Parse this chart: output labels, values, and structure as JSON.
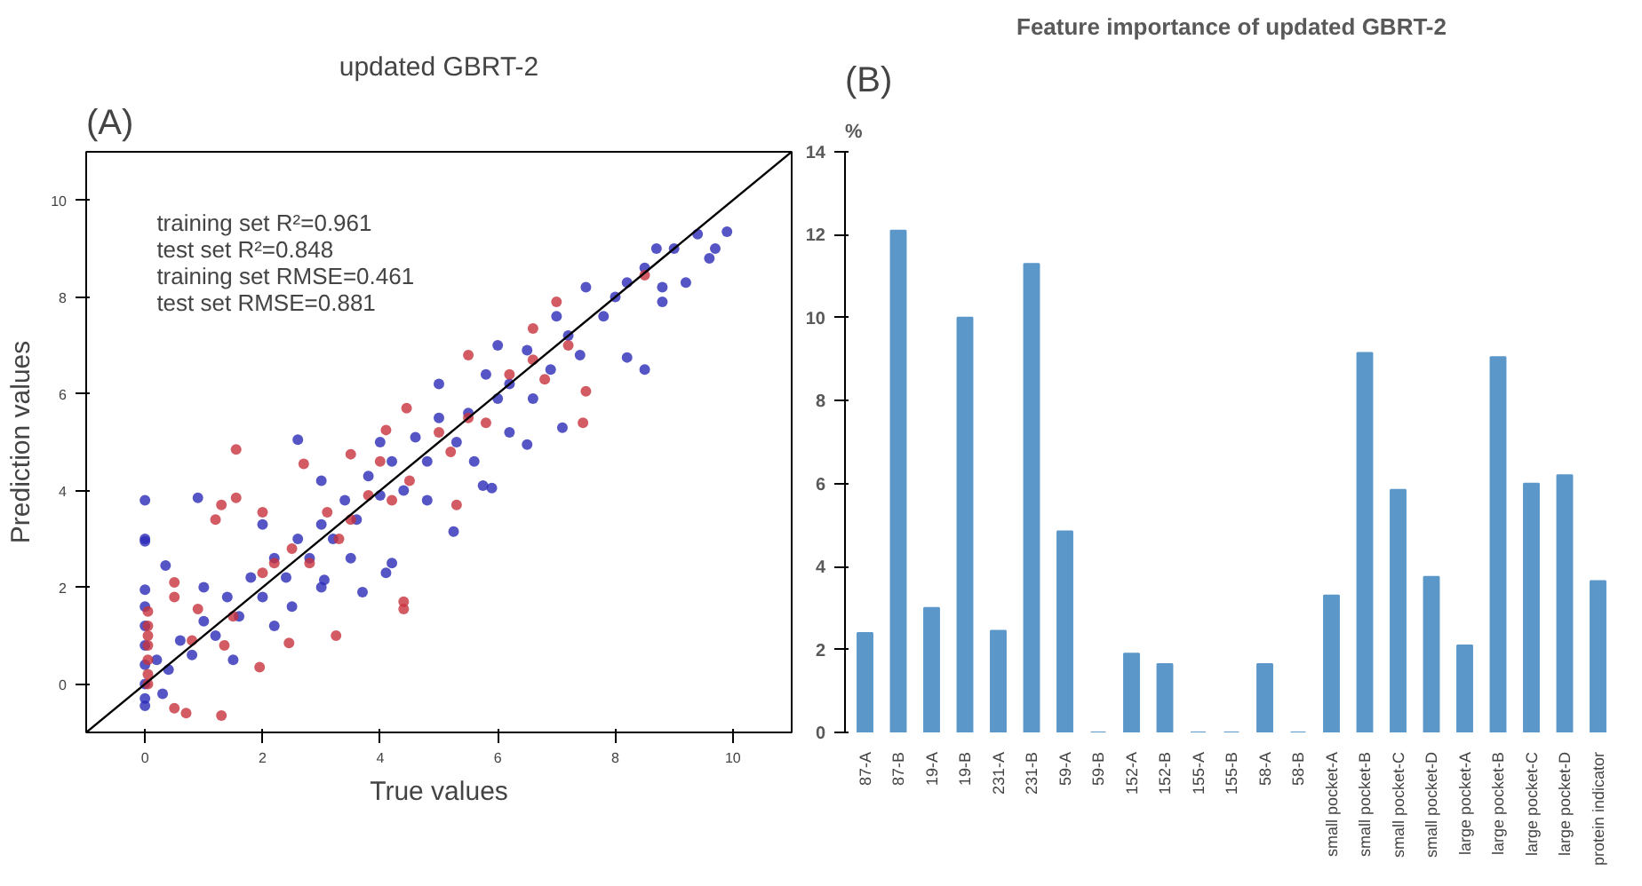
{
  "chart_data": [
    {
      "type": "scatter",
      "title": "updated GBRT-2",
      "xlabel": "True values",
      "ylabel": "Prediction values",
      "annotations": [
        "(A)",
        "training set R²=0.961",
        "test set R²=0.848",
        "training set RMSE=0.461",
        "test set RMSE=0.881"
      ],
      "xlim": [
        -1,
        11
      ],
      "ylim": [
        -1,
        11
      ],
      "xticks": [
        0,
        2,
        4,
        6,
        8,
        10
      ],
      "yticks": [
        0,
        2,
        4,
        6,
        8,
        10
      ],
      "grid": false,
      "marker": "circle",
      "series": [
        {
          "color": "#2a2ab8",
          "x": [
            0,
            0,
            0,
            0.9,
            0.35,
            2.6,
            5.25,
            3.05,
            3.7,
            4.2,
            4.1,
            6.5,
            7.1,
            5.9,
            5.75,
            8.2,
            8.5,
            8.8,
            9.2,
            9.4,
            9.9,
            9.6,
            9.7,
            9.0,
            8.7,
            8.5,
            8.2,
            8.0,
            7.8,
            7.5,
            7.2,
            7.0,
            6.9,
            6.5,
            6.2,
            6.0,
            5.8,
            5.5,
            5.3,
            5.0,
            4.8,
            4.6,
            4.4,
            4.2,
            4.0,
            3.8,
            3.6,
            3.4,
            3.2,
            3.0,
            2.8,
            2.6,
            2.4,
            2.2,
            2.0,
            1.8,
            1.6,
            1.4,
            1.2,
            1.0,
            0.8,
            0.6,
            0.4,
            0.2,
            0,
            0,
            0,
            0,
            0,
            0,
            0,
            0,
            0.3,
            1.5,
            2.2,
            3.0,
            1.0,
            2.0,
            3.0,
            4.0,
            5.0,
            6.0,
            6.2,
            4.8,
            5.6,
            7.4,
            8.8,
            6.6,
            3.5,
            2.5
          ],
          "values": [
            3.8,
            3.0,
            2.95,
            3.85,
            2.45,
            5.05,
            3.15,
            2.15,
            1.9,
            2.5,
            2.3,
            4.95,
            5.3,
            4.05,
            4.1,
            6.75,
            6.5,
            7.9,
            8.3,
            9.3,
            9.35,
            8.8,
            9.0,
            9.0,
            9.0,
            8.6,
            8.3,
            8.0,
            7.6,
            8.2,
            7.2,
            7.6,
            6.5,
            6.9,
            6.2,
            5.9,
            6.4,
            5.6,
            5.0,
            5.5,
            4.6,
            5.1,
            4.0,
            4.6,
            3.9,
            4.3,
            3.4,
            3.8,
            3.0,
            3.3,
            2.6,
            3.0,
            2.2,
            2.6,
            1.8,
            2.2,
            1.4,
            1.8,
            1.0,
            1.3,
            0.6,
            0.9,
            0.3,
            0.5,
            -0.45,
            -0.3,
            0.0,
            0.4,
            0.8,
            1.2,
            1.6,
            1.95,
            -0.2,
            0.5,
            1.2,
            2.0,
            2.0,
            3.3,
            4.2,
            5.0,
            6.2,
            7.0,
            5.2,
            3.8,
            4.6,
            6.8,
            8.2,
            5.9,
            2.6,
            1.6
          ]
        },
        {
          "color": "#c8323c",
          "x": [
            4.4,
            4.4,
            3.25,
            2.45,
            1.95,
            1.3,
            0.7,
            0.5,
            1.55,
            1.55,
            1.3,
            1.2,
            2.0,
            2.7,
            3.5,
            4.1,
            4.45,
            5.5,
            5.3,
            7.0,
            7.5,
            7.45,
            6.6,
            8.5,
            0.5,
            0.5,
            0.05,
            0.05,
            0.05,
            0.05,
            0.05,
            0.05,
            0.05,
            0.9,
            1.5,
            2,
            2.5,
            3.1,
            3.5,
            4,
            4.5,
            5,
            5.5,
            5.8,
            6.2,
            6.6,
            3.8,
            2.2,
            1.35,
            0.8,
            4.2,
            3.3,
            2.8,
            6.8,
            7.2,
            5.2
          ],
          "values": [
            1.7,
            1.55,
            1.0,
            0.85,
            0.35,
            -0.65,
            -0.6,
            -0.5,
            4.85,
            3.85,
            3.7,
            3.4,
            3.55,
            4.55,
            4.75,
            5.25,
            5.7,
            6.8,
            3.7,
            7.9,
            6.05,
            5.4,
            7.35,
            8.45,
            2.1,
            1.8,
            1.5,
            1.0,
            0.5,
            0.2,
            0.0,
            0.8,
            1.2,
            1.55,
            1.4,
            2.3,
            2.8,
            3.55,
            3.4,
            4.6,
            4.2,
            5.2,
            5.5,
            5.4,
            6.4,
            6.7,
            3.9,
            2.5,
            0.8,
            0.9,
            3.8,
            3.0,
            2.5,
            6.3,
            7.0,
            4.8
          ]
        },
        {
          "type": "line",
          "marker": "none",
          "color": "#000000",
          "x": [
            -1,
            11
          ],
          "values": [
            -1,
            11
          ]
        }
      ]
    },
    {
      "type": "bar",
      "title": "Feature importance of updated GBRT-2",
      "ylabel": "%",
      "annotations": [
        "(B)"
      ],
      "categories": [
        "87-A",
        "87-B",
        "19-A",
        "19-B",
        "231-A",
        "231-B",
        "59-A",
        "59-B",
        "152-A",
        "152-B",
        "155-A",
        "155-B",
        "58-A",
        "58-B",
        "small pocket-A",
        "small pocket-B",
        "small pocket-C",
        "small pocket-D",
        "large pocket-A",
        "large pocket-B",
        "large pocket-C",
        "large pocket-D",
        "protein indicator"
      ],
      "values": [
        2.4,
        12.1,
        3.0,
        10.0,
        2.45,
        11.3,
        4.85,
        0,
        1.9,
        1.65,
        0,
        0,
        1.65,
        0,
        3.3,
        9.15,
        5.85,
        3.75,
        2.1,
        9.05,
        6.0,
        6.2,
        3.65
      ],
      "color": "#5b97c9",
      "ylim": [
        0,
        14
      ],
      "yticks": [
        0,
        2,
        4,
        6,
        8,
        10,
        12,
        14
      ],
      "grid": false
    }
  ]
}
